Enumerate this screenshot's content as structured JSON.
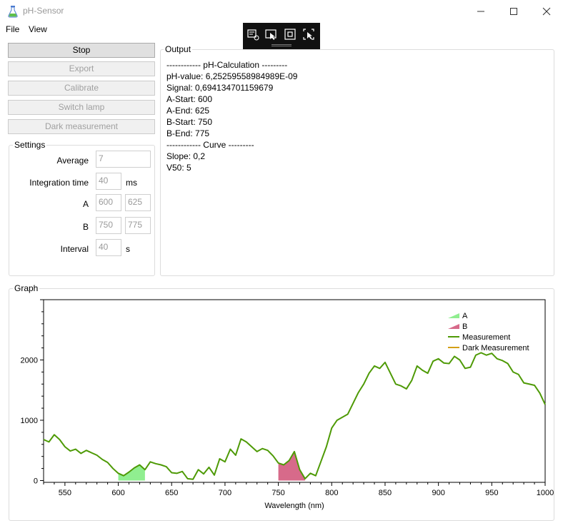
{
  "window": {
    "title": "pH-Sensor"
  },
  "menu": [
    "File",
    "View"
  ],
  "buttons": {
    "stop": "Stop",
    "export": "Export",
    "calibrate": "Calibrate",
    "switch_lamp": "Switch lamp",
    "dark_measurement": "Dark measurement"
  },
  "settings": {
    "title": "Settings",
    "average": {
      "label": "Average",
      "value": "7"
    },
    "integration_time": {
      "label": "Integration time",
      "value": "40",
      "unit": "ms"
    },
    "a": {
      "label": "A",
      "start": "600",
      "end": "625"
    },
    "b": {
      "label": "B",
      "start": "750",
      "end": "775"
    },
    "interval": {
      "label": "Interval",
      "value": "40",
      "unit": "s"
    }
  },
  "output": {
    "title": "Output",
    "lines": [
      "------------ pH-Calculation ---------",
      "pH-value: 6,25259558984989E-09",
      "Signal: 0,694134701159679",
      "A-Start: 600",
      "A-End: 625",
      "B-Start: 750",
      "B-End: 775",
      "------------ Curve ---------",
      "Slope: 0,2",
      "V50: 5"
    ]
  },
  "graph": {
    "title": "Graph"
  },
  "colors": {
    "measurement": "#4e9a06",
    "dark_measurement": "#d4a017",
    "band_a": "#90ee90",
    "band_b": "#d76a8a"
  },
  "chart_data": {
    "type": "line",
    "title": "",
    "xlabel": "Wavelength (nm)",
    "ylabel": "",
    "xlim": [
      530,
      1000
    ],
    "ylim": [
      -30,
      3000
    ],
    "xticks": [
      550,
      600,
      650,
      700,
      750,
      800,
      850,
      900,
      950,
      1000
    ],
    "yticks": [
      0,
      1000,
      2000
    ],
    "legend_position": "top-right",
    "series": [
      {
        "name": "Measurement",
        "x": [
          530,
          535,
          540,
          545,
          550,
          555,
          560,
          565,
          570,
          575,
          580,
          585,
          590,
          595,
          600,
          605,
          610,
          615,
          620,
          625,
          630,
          635,
          640,
          645,
          650,
          655,
          660,
          665,
          670,
          675,
          680,
          685,
          690,
          695,
          700,
          705,
          710,
          715,
          720,
          725,
          730,
          735,
          740,
          745,
          750,
          755,
          760,
          765,
          770,
          775,
          780,
          785,
          790,
          795,
          800,
          805,
          810,
          815,
          820,
          825,
          830,
          835,
          840,
          845,
          850,
          855,
          860,
          865,
          870,
          875,
          880,
          885,
          890,
          895,
          900,
          905,
          910,
          915,
          920,
          925,
          930,
          935,
          940,
          945,
          950,
          955,
          960,
          965,
          970,
          975,
          980,
          985,
          990,
          995,
          1000
        ],
        "values": [
          680,
          640,
          760,
          680,
          560,
          490,
          520,
          450,
          500,
          460,
          420,
          350,
          300,
          200,
          120,
          80,
          140,
          210,
          260,
          180,
          310,
          280,
          260,
          230,
          130,
          120,
          150,
          30,
          20,
          180,
          110,
          220,
          90,
          360,
          310,
          520,
          420,
          690,
          640,
          560,
          480,
          530,
          500,
          410,
          290,
          260,
          330,
          480,
          180,
          30,
          120,
          80,
          320,
          560,
          870,
          1000,
          1050,
          1100,
          1280,
          1460,
          1600,
          1780,
          1900,
          1860,
          1960,
          1780,
          1600,
          1570,
          1520,
          1660,
          1900,
          1830,
          1780,
          1980,
          2020,
          1950,
          1940,
          2060,
          2000,
          1860,
          1880,
          2080,
          2120,
          2080,
          2110,
          2020,
          1990,
          1940,
          1800,
          1760,
          1620,
          1600,
          1580,
          1450,
          1260
        ]
      },
      {
        "name": "Dark Measurement",
        "x": [],
        "values": []
      },
      {
        "name": "A",
        "type": "area",
        "x_range": [
          600,
          625
        ]
      },
      {
        "name": "B",
        "type": "area",
        "x_range": [
          750,
          775
        ]
      }
    ]
  }
}
